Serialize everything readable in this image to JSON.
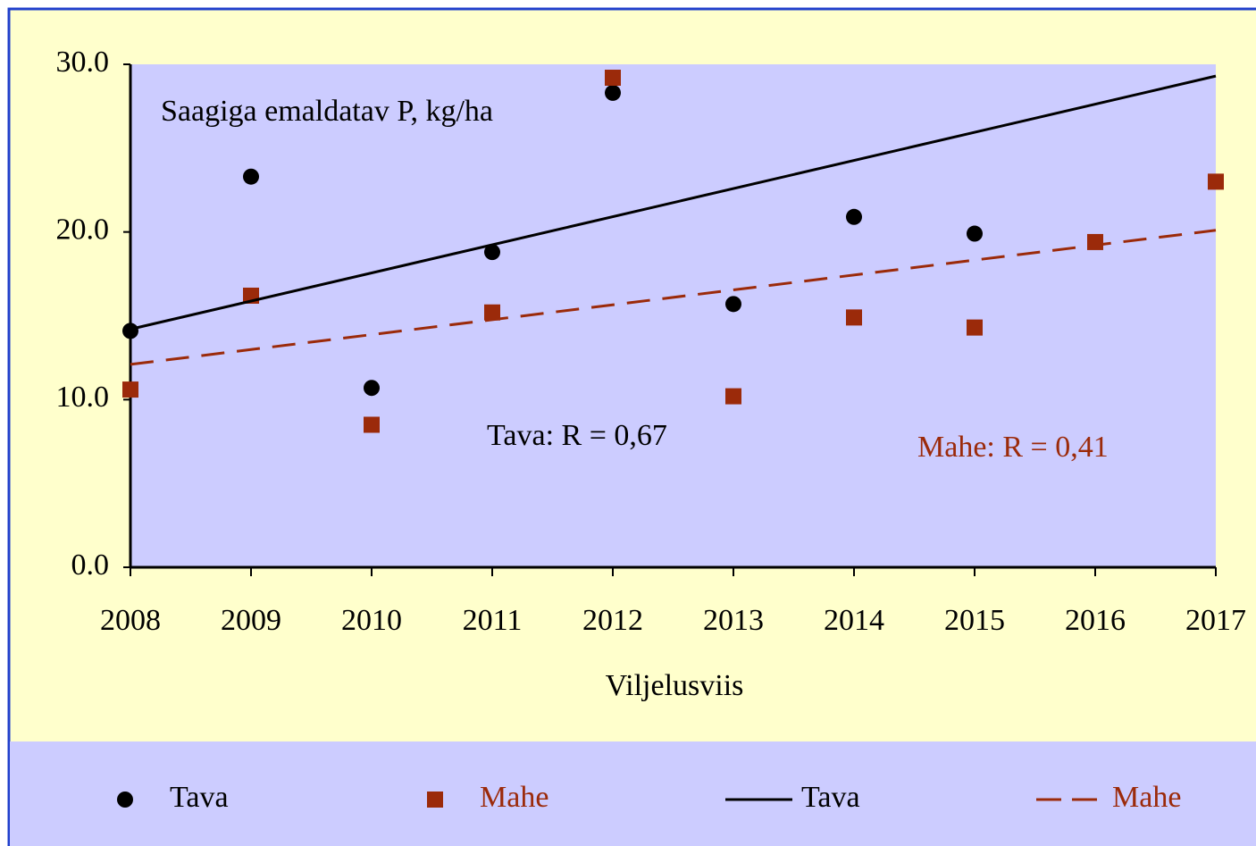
{
  "chart_data": {
    "type": "scatter",
    "annotations": [
      "Saagiga emaldatav P, kg/ha",
      "Tava: R = 0,67",
      "Mahe: R = 0,41"
    ],
    "xlabel": "Viljelusviis",
    "x": [
      2008,
      2009,
      2010,
      2011,
      2012,
      2013,
      2014,
      2015,
      2016,
      2017
    ],
    "series": [
      {
        "name": "Tava",
        "color": "#000000",
        "marker": "circle",
        "values": [
          14.1,
          23.3,
          10.7,
          18.8,
          28.3,
          15.7,
          20.9,
          19.9,
          null,
          null
        ]
      },
      {
        "name": "Mahe",
        "color": "#9b2a0a",
        "marker": "square",
        "values": [
          10.6,
          16.2,
          8.5,
          15.2,
          29.2,
          10.2,
          14.9,
          14.3,
          19.4,
          23.0
        ]
      },
      {
        "name": "Tava",
        "color": "#000000",
        "marker": "line",
        "x": [
          2008,
          2017
        ],
        "values": [
          14.2,
          29.3
        ]
      },
      {
        "name": "Mahe",
        "color": "#9b2a0a",
        "marker": "dashed-line",
        "x": [
          2008,
          2017
        ],
        "values": [
          12.1,
          20.1
        ]
      }
    ],
    "xlim": [
      2008,
      2017
    ],
    "xticks": [
      2008,
      2009,
      2010,
      2011,
      2012,
      2013,
      2014,
      2015,
      2016,
      2017
    ],
    "ylim": [
      0,
      30
    ],
    "yticks": [
      {
        "value": 0,
        "label": "0.0"
      },
      {
        "value": 10,
        "label": "10.0"
      },
      {
        "value": 20,
        "label": "20.0"
      },
      {
        "value": 30,
        "label": "30.0"
      }
    ]
  }
}
